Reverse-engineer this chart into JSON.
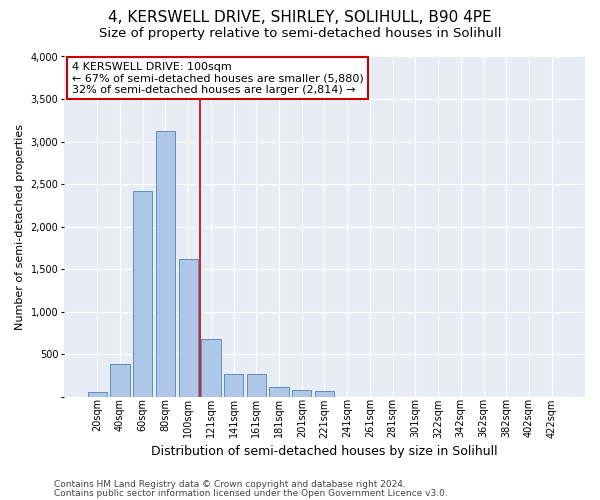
{
  "title": "4, KERSWELL DRIVE, SHIRLEY, SOLIHULL, B90 4PE",
  "subtitle": "Size of property relative to semi-detached houses in Solihull",
  "xlabel": "Distribution of semi-detached houses by size in Solihull",
  "ylabel": "Number of semi-detached properties",
  "bar_color": "#aec6e8",
  "bar_edge_color": "#5a8fc0",
  "background_color": "#e8ecf5",
  "categories": [
    "20sqm",
    "40sqm",
    "60sqm",
    "80sqm",
    "100sqm",
    "121sqm",
    "141sqm",
    "161sqm",
    "181sqm",
    "201sqm",
    "221sqm",
    "241sqm",
    "261sqm",
    "281sqm",
    "301sqm",
    "322sqm",
    "342sqm",
    "362sqm",
    "382sqm",
    "402sqm",
    "422sqm"
  ],
  "values": [
    55,
    380,
    2420,
    3130,
    1620,
    680,
    270,
    270,
    115,
    75,
    65,
    0,
    0,
    0,
    0,
    0,
    0,
    0,
    0,
    0,
    0
  ],
  "vline_x_index": 4,
  "vline_color": "#cc0000",
  "annotation_text": "4 KERSWELL DRIVE: 100sqm\n← 67% of semi-detached houses are smaller (5,880)\n32% of semi-detached houses are larger (2,814) →",
  "annotation_box_color": "white",
  "annotation_box_edge_color": "#cc0000",
  "ylim": [
    0,
    4000
  ],
  "yticks": [
    0,
    500,
    1000,
    1500,
    2000,
    2500,
    3000,
    3500,
    4000
  ],
  "footer_line1": "Contains HM Land Registry data © Crown copyright and database right 2024.",
  "footer_line2": "Contains public sector information licensed under the Open Government Licence v3.0.",
  "title_fontsize": 11,
  "subtitle_fontsize": 9.5,
  "xlabel_fontsize": 9,
  "ylabel_fontsize": 8,
  "annotation_fontsize": 8,
  "tick_fontsize": 7,
  "footer_fontsize": 6.5
}
